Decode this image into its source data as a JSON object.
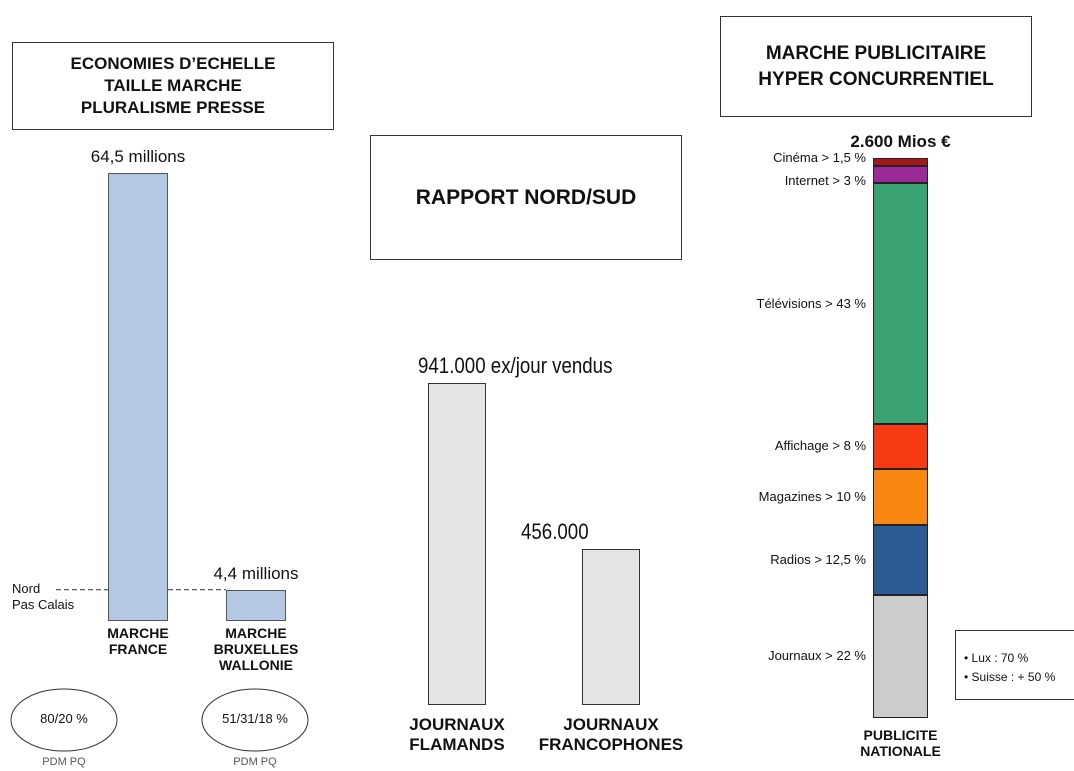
{
  "chart_data": [
    {
      "type": "bar",
      "title": [
        "ECONOMIES D’ECHELLE",
        "TAILLE MARCHE",
        "PLURALISME PRESSE"
      ],
      "categories": [
        "MARCHE FRANCE",
        "MARCHE BRUXELLES WALLONIE"
      ],
      "values": [
        64.5,
        4.4
      ],
      "value_labels": [
        "64,5 millions",
        "4,4 millions"
      ],
      "color": "#b4c7e3",
      "reference": {
        "value": 4.5,
        "label": [
          "Nord",
          "Pas Calais"
        ]
      },
      "shares": [
        "80/20 %",
        "51/31/18 %"
      ],
      "share_caption": "PDM PQ"
    },
    {
      "type": "bar",
      "title": [
        "RAPPORT NORD/SUD"
      ],
      "categories": [
        "JOURNAUX FLAMANDS",
        "JOURNAUX FRANCOPHONES"
      ],
      "values": [
        941000,
        456000
      ],
      "value_labels": [
        "941.000 ex/jour vendus",
        "456.000"
      ],
      "color": "#e4e4e4"
    },
    {
      "type": "stacked_bar",
      "title": [
        "MARCHE PUBLICITAIRE",
        "HYPER CONCURRENTIEL"
      ],
      "categories": [
        "PUBLICITE NATIONALE"
      ],
      "total": 2600,
      "total_label": "2.600 Mios €",
      "series": [
        {
          "name": "Journaux > 22 %",
          "color": "#cccccc",
          "values": [
            22
          ]
        },
        {
          "name": "Radios > 12,5 %",
          "color": "#2d5b93",
          "values": [
            12.5
          ]
        },
        {
          "name": "Magazines > 10 %",
          "color": "#f7870f",
          "values": [
            10
          ]
        },
        {
          "name": "Affichage > 8 %",
          "color": "#f63a14",
          "values": [
            8
          ]
        },
        {
          "name": "Télévisions > 43 %",
          "color": "#3ba373",
          "values": [
            43
          ]
        },
        {
          "name": "Internet > 3 %",
          "color": "#9a2a98",
          "values": [
            3
          ]
        },
        {
          "name": "Cinéma > 1,5 %",
          "color": "#a31818",
          "values": [
            1.5
          ]
        }
      ],
      "note": [
        "• Lux : 70 %",
        "• Suisse : + 50 %"
      ]
    }
  ]
}
